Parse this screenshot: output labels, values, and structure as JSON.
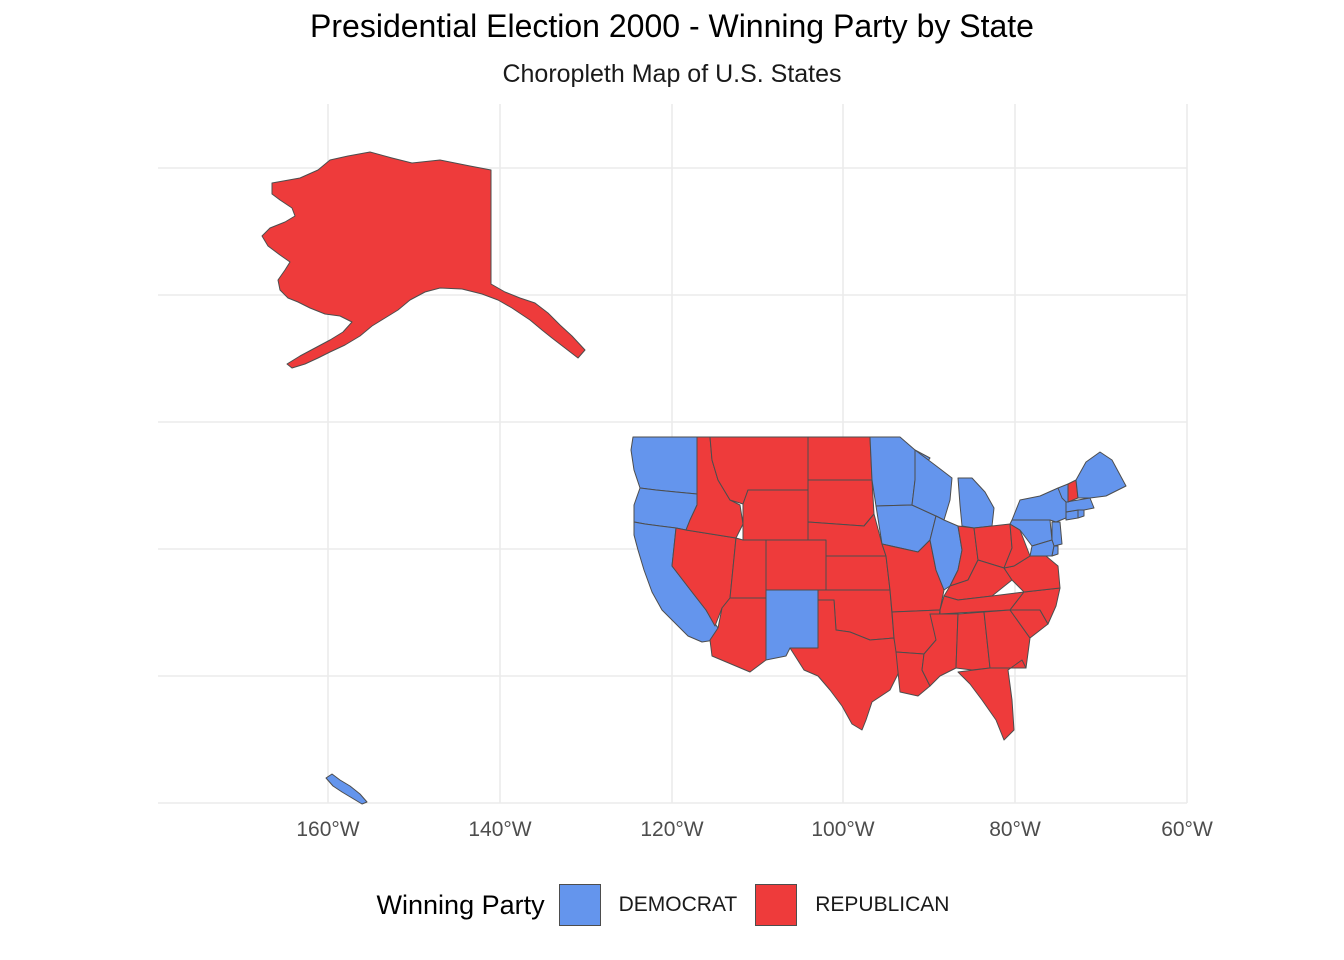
{
  "title": "Presidential Election 2000 - Winning Party by State",
  "subtitle": "Choropleth Map of U.S. States",
  "colors": {
    "democrat": "#6495ED",
    "republican": "#EE3B3B",
    "border": "#4d4d4d",
    "grid": "#ebebeb"
  },
  "axis": {
    "x_ticks": [
      "160°W",
      "140°W",
      "120°W",
      "100°W",
      "80°W",
      "60°W"
    ]
  },
  "legend": {
    "title": "Winning Party",
    "items": [
      {
        "label": "DEMOCRAT",
        "color": "#6495ED"
      },
      {
        "label": "REPUBLICAN",
        "color": "#EE3B3B"
      }
    ]
  },
  "chart_data": {
    "type": "choropleth",
    "title": "Presidential Election 2000 - Winning Party by State",
    "subtitle": "Choropleth Map of U.S. States",
    "legend_title": "Winning Party",
    "legend_position": "bottom",
    "grid": true,
    "x_ticks": [
      "160°W",
      "140°W",
      "120°W",
      "100°W",
      "80°W",
      "60°W"
    ],
    "xlim": [
      -180,
      -60
    ],
    "regions": [
      {
        "name": "AK",
        "party": "REPUBLICAN"
      },
      {
        "name": "HI",
        "party": "DEMOCRAT"
      },
      {
        "name": "WA",
        "party": "DEMOCRAT"
      },
      {
        "name": "OR",
        "party": "DEMOCRAT"
      },
      {
        "name": "CA",
        "party": "DEMOCRAT"
      },
      {
        "name": "NV",
        "party": "REPUBLICAN"
      },
      {
        "name": "ID",
        "party": "REPUBLICAN"
      },
      {
        "name": "MT",
        "party": "REPUBLICAN"
      },
      {
        "name": "WY",
        "party": "REPUBLICAN"
      },
      {
        "name": "UT",
        "party": "REPUBLICAN"
      },
      {
        "name": "AZ",
        "party": "REPUBLICAN"
      },
      {
        "name": "CO",
        "party": "REPUBLICAN"
      },
      {
        "name": "NM",
        "party": "DEMOCRAT"
      },
      {
        "name": "ND",
        "party": "REPUBLICAN"
      },
      {
        "name": "SD",
        "party": "REPUBLICAN"
      },
      {
        "name": "NE",
        "party": "REPUBLICAN"
      },
      {
        "name": "KS",
        "party": "REPUBLICAN"
      },
      {
        "name": "OK",
        "party": "REPUBLICAN"
      },
      {
        "name": "TX",
        "party": "REPUBLICAN"
      },
      {
        "name": "MN",
        "party": "DEMOCRAT"
      },
      {
        "name": "IA",
        "party": "DEMOCRAT"
      },
      {
        "name": "MO",
        "party": "REPUBLICAN"
      },
      {
        "name": "AR",
        "party": "REPUBLICAN"
      },
      {
        "name": "LA",
        "party": "REPUBLICAN"
      },
      {
        "name": "WI",
        "party": "DEMOCRAT"
      },
      {
        "name": "IL",
        "party": "DEMOCRAT"
      },
      {
        "name": "MI",
        "party": "DEMOCRAT"
      },
      {
        "name": "IN",
        "party": "REPUBLICAN"
      },
      {
        "name": "OH",
        "party": "REPUBLICAN"
      },
      {
        "name": "KY",
        "party": "REPUBLICAN"
      },
      {
        "name": "TN",
        "party": "REPUBLICAN"
      },
      {
        "name": "MS",
        "party": "REPUBLICAN"
      },
      {
        "name": "AL",
        "party": "REPUBLICAN"
      },
      {
        "name": "GA",
        "party": "REPUBLICAN"
      },
      {
        "name": "FL",
        "party": "REPUBLICAN"
      },
      {
        "name": "SC",
        "party": "REPUBLICAN"
      },
      {
        "name": "NC",
        "party": "REPUBLICAN"
      },
      {
        "name": "VA",
        "party": "REPUBLICAN"
      },
      {
        "name": "WV",
        "party": "REPUBLICAN"
      },
      {
        "name": "PA",
        "party": "DEMOCRAT"
      },
      {
        "name": "NY",
        "party": "DEMOCRAT"
      },
      {
        "name": "NJ",
        "party": "DEMOCRAT"
      },
      {
        "name": "MD",
        "party": "DEMOCRAT"
      },
      {
        "name": "DE",
        "party": "DEMOCRAT"
      },
      {
        "name": "CT",
        "party": "DEMOCRAT"
      },
      {
        "name": "RI",
        "party": "DEMOCRAT"
      },
      {
        "name": "MA",
        "party": "DEMOCRAT"
      },
      {
        "name": "VT",
        "party": "DEMOCRAT"
      },
      {
        "name": "NH",
        "party": "REPUBLICAN"
      },
      {
        "name": "ME",
        "party": "DEMOCRAT"
      }
    ]
  }
}
